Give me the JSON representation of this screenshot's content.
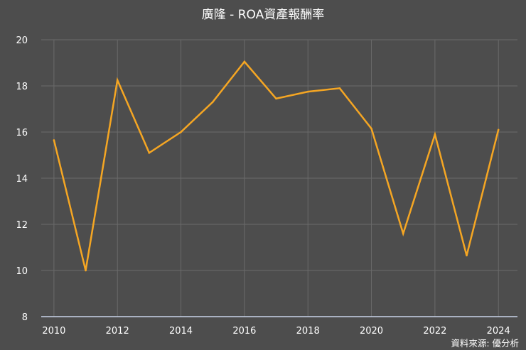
{
  "chart_data": {
    "type": "line",
    "title": "廣隆 - ROA資產報酬率",
    "xlabel": "",
    "ylabel": "",
    "x": [
      2010,
      2011,
      2012,
      2013,
      2014,
      2015,
      2016,
      2017,
      2018,
      2019,
      2020,
      2021,
      2022,
      2023,
      2024
    ],
    "x_tick_labels": [
      "2010",
      "2012",
      "2014",
      "2016",
      "2018",
      "2020",
      "2022",
      "2024"
    ],
    "y_tick_labels": [
      "8",
      "10",
      "12",
      "14",
      "16",
      "18",
      "20"
    ],
    "ylim": [
      8,
      20
    ],
    "xlim": [
      2009.6,
      2024.6
    ],
    "grid": true,
    "series": [
      {
        "values": [
          15.65,
          10.0,
          18.25,
          15.1,
          16.0,
          17.3,
          19.05,
          17.45,
          17.75,
          17.9,
          16.15,
          11.6,
          15.9,
          10.65,
          16.1
        ]
      }
    ],
    "source": "資料來源: 優分析",
    "colors": {
      "background": "#4d4d4d",
      "line": "#f5a623",
      "grid": "#6a6a6a",
      "text": "#ffffff",
      "baseline": "#c9d3ea"
    }
  }
}
